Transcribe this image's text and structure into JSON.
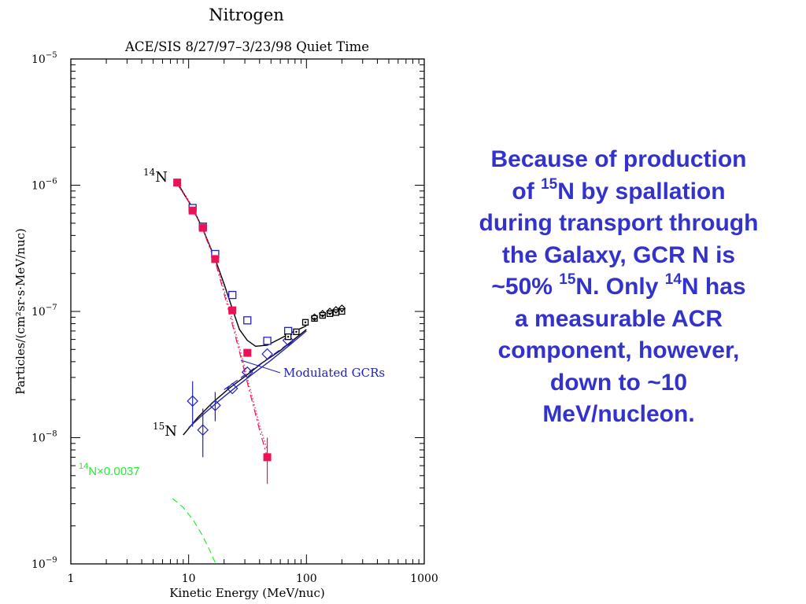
{
  "colors": {
    "axis": "#000000",
    "acr_model": "#000000",
    "gcr_blue": "#2222bb",
    "red_measured": "#ee1155",
    "green_model": "#22ee33",
    "caption": "#3333cc"
  },
  "chart_data": {
    "type": "scatter",
    "title": "Nitrogen",
    "subtitle": "ACE/SIS 8/27/97–3/23/98 Quiet Time",
    "xlabel": "Kinetic Energy (MeV/nuc)",
    "ylabel": "Particles/(cm²sr·s·MeV/nuc)",
    "xscale": "log",
    "yscale": "log",
    "xlim": [
      1,
      1000
    ],
    "ylim": [
      1e-09,
      1e-05
    ],
    "x_ticks": [
      {
        "value": 1,
        "label": "1"
      },
      {
        "value": 10,
        "label": "10"
      },
      {
        "value": 100,
        "label": "100"
      },
      {
        "value": 1000,
        "label": "1000"
      }
    ],
    "y_ticks": [
      {
        "value": 1e-09,
        "base": "10",
        "exp": "−9"
      },
      {
        "value": 1e-08,
        "base": "10",
        "exp": "−8"
      },
      {
        "value": 1e-07,
        "base": "10",
        "exp": "−7"
      },
      {
        "value": 1e-06,
        "base": "10",
        "exp": "−6"
      },
      {
        "value": 1e-05,
        "base": "10",
        "exp": "−5"
      }
    ],
    "labels": {
      "n14": {
        "mass": "14",
        "element": "N"
      },
      "n15": {
        "mass": "15",
        "element": "N"
      },
      "green": {
        "mass": "14",
        "rest": "N×0.0037"
      },
      "modulated": "Modulated GCRs"
    },
    "series": [
      {
        "marker": "square-open",
        "color": "#2222bb",
        "x": [
          10.8,
          13.2,
          16.8,
          23.5,
          31.5,
          46.5
        ],
        "y": [
          6.6e-07,
          4.7e-07,
          2.85e-07,
          1.35e-07,
          8.5e-08,
          5.85e-08
        ]
      },
      {
        "marker": "square-filled",
        "color": "#ee1155",
        "x": [
          8.0,
          10.8,
          13.2,
          16.8,
          23.5,
          31.5,
          46.5
        ],
        "y": [
          1.05e-06,
          6.3e-07,
          4.6e-07,
          2.6e-07,
          1.02e-07,
          4.7e-08,
          7e-09
        ],
        "err_low": [
          null,
          null,
          null,
          null,
          null,
          null,
          4.3e-09
        ],
        "err_high": [
          null,
          null,
          null,
          null,
          null,
          null,
          1e-08
        ]
      },
      {
        "marker": "diamond-open",
        "color": "#2222bb",
        "x": [
          10.8,
          13.2,
          16.8,
          23.5,
          31.5,
          46.5,
          70.0
        ],
        "y": [
          1.95e-08,
          1.15e-08,
          1.8e-08,
          2.45e-08,
          3.3e-08,
          4.6e-08,
          5.9e-08
        ],
        "err_low": [
          1.22e-08,
          7e-09,
          1.35e-08,
          null,
          null,
          null,
          null
        ],
        "err_high": [
          2.8e-08,
          1.7e-08,
          2.3e-08,
          null,
          null,
          null,
          null
        ]
      },
      {
        "marker": "square-open",
        "color": "#2222bb",
        "x": [
          70.0
        ],
        "y": [
          7e-08
        ]
      },
      {
        "marker": "square-open-dot",
        "color": "#000000",
        "x": [
          70.0,
          82.0,
          98.0,
          117.0,
          137.0,
          158.0,
          178.0,
          200.0
        ],
        "y": [
          6.3e-08,
          6.9e-08,
          8.2e-08,
          8.8e-08,
          9.3e-08,
          9.6e-08,
          9.8e-08,
          1e-07
        ]
      },
      {
        "marker": "diamond-open",
        "color": "#000000",
        "x": [
          117.0,
          137.0,
          158.0,
          178.0,
          200.0
        ],
        "y": [
          9e-08,
          9.6e-08,
          1e-07,
          1.03e-07,
          1.06e-07
        ]
      }
    ],
    "curves": [
      {
        "style": "solid",
        "color": "#000000",
        "x": [
          8.0,
          9.0,
          10.8,
          13.2,
          16.8,
          20.0,
          23.5,
          27.0,
          31.5,
          37.0,
          46.5,
          60.0,
          75.0,
          100.0
        ],
        "y": [
          1.06e-06,
          8.7e-07,
          6.6e-07,
          4.5e-07,
          2.6e-07,
          1.65e-07,
          1.05e-07,
          7.2e-08,
          5.9e-08,
          5.3e-08,
          5.4e-08,
          6.1e-08,
          6.8e-08,
          7.7e-08
        ]
      },
      {
        "style": "solid",
        "color": "#000000",
        "x": [
          9.0,
          12.0,
          16.0,
          22.0,
          30.0,
          42.0,
          60.0,
          100.0
        ],
        "y": [
          1.05e-08,
          1.45e-08,
          1.9e-08,
          2.45e-08,
          3.05e-08,
          3.9e-08,
          4.9e-08,
          7.2e-08
        ]
      },
      {
        "style": "solid",
        "color": "#2222bb",
        "x": [
          10.0,
          13.0,
          18.0,
          25.0,
          35.0,
          50.0,
          70.0,
          100.0
        ],
        "y": [
          1.2e-08,
          1.5e-08,
          1.95e-08,
          2.5e-08,
          3.2e-08,
          4.1e-08,
          5.3e-08,
          7e-08
        ]
      },
      {
        "style": "dashed",
        "color": "#2222bb",
        "x": [
          20.0,
          28.0,
          40.0,
          55.0,
          75.0
        ],
        "y": [
          2.4e-08,
          3e-08,
          3.8e-08,
          4.7e-08,
          5.8e-08
        ]
      },
      {
        "style": "dashdot",
        "color": "#ee1155",
        "x": [
          8.0,
          10.0,
          13.0,
          17.0,
          22.0,
          27.0,
          33.0,
          40.0,
          46.5
        ],
        "y": [
          1.02e-06,
          7.4e-07,
          4.6e-07,
          2.4e-07,
          1e-07,
          4.8e-08,
          2.3e-08,
          1.15e-08,
          7e-09
        ]
      },
      {
        "style": "dotted",
        "color": "#ee1155",
        "x": [
          8.0,
          10.0,
          13.0,
          17.0,
          22.0,
          27.0,
          33.0,
          40.0,
          46.5
        ],
        "y": [
          1.05e-06,
          7.6e-07,
          4.7e-07,
          2.5e-07,
          1.08e-07,
          5.2e-08,
          2.5e-08,
          1.25e-08,
          8e-09
        ]
      },
      {
        "style": "dashed",
        "color": "#22ee33",
        "x": [
          7.3,
          9.0,
          11.0,
          13.0,
          15.0,
          17.0
        ],
        "y": [
          3.3e-09,
          2.8e-09,
          2.2e-09,
          1.7e-09,
          1.3e-09,
          1e-09
        ]
      }
    ]
  },
  "caption": {
    "line1": "Because of production",
    "line2_pre": "of ",
    "line2_sup": "15",
    "line2_post": "N by spallation",
    "line3": "during transport through",
    "line4": "the Galaxy, GCR N is",
    "line5_pre": "~50% ",
    "line5_sup1": "15",
    "line5_mid": "N.  Only ",
    "line5_sup2": "14",
    "line5_post": "N has",
    "line6": "a measurable ACR",
    "line7": "component, however,",
    "line8": "down to ~10",
    "line9": "MeV/nucleon."
  }
}
